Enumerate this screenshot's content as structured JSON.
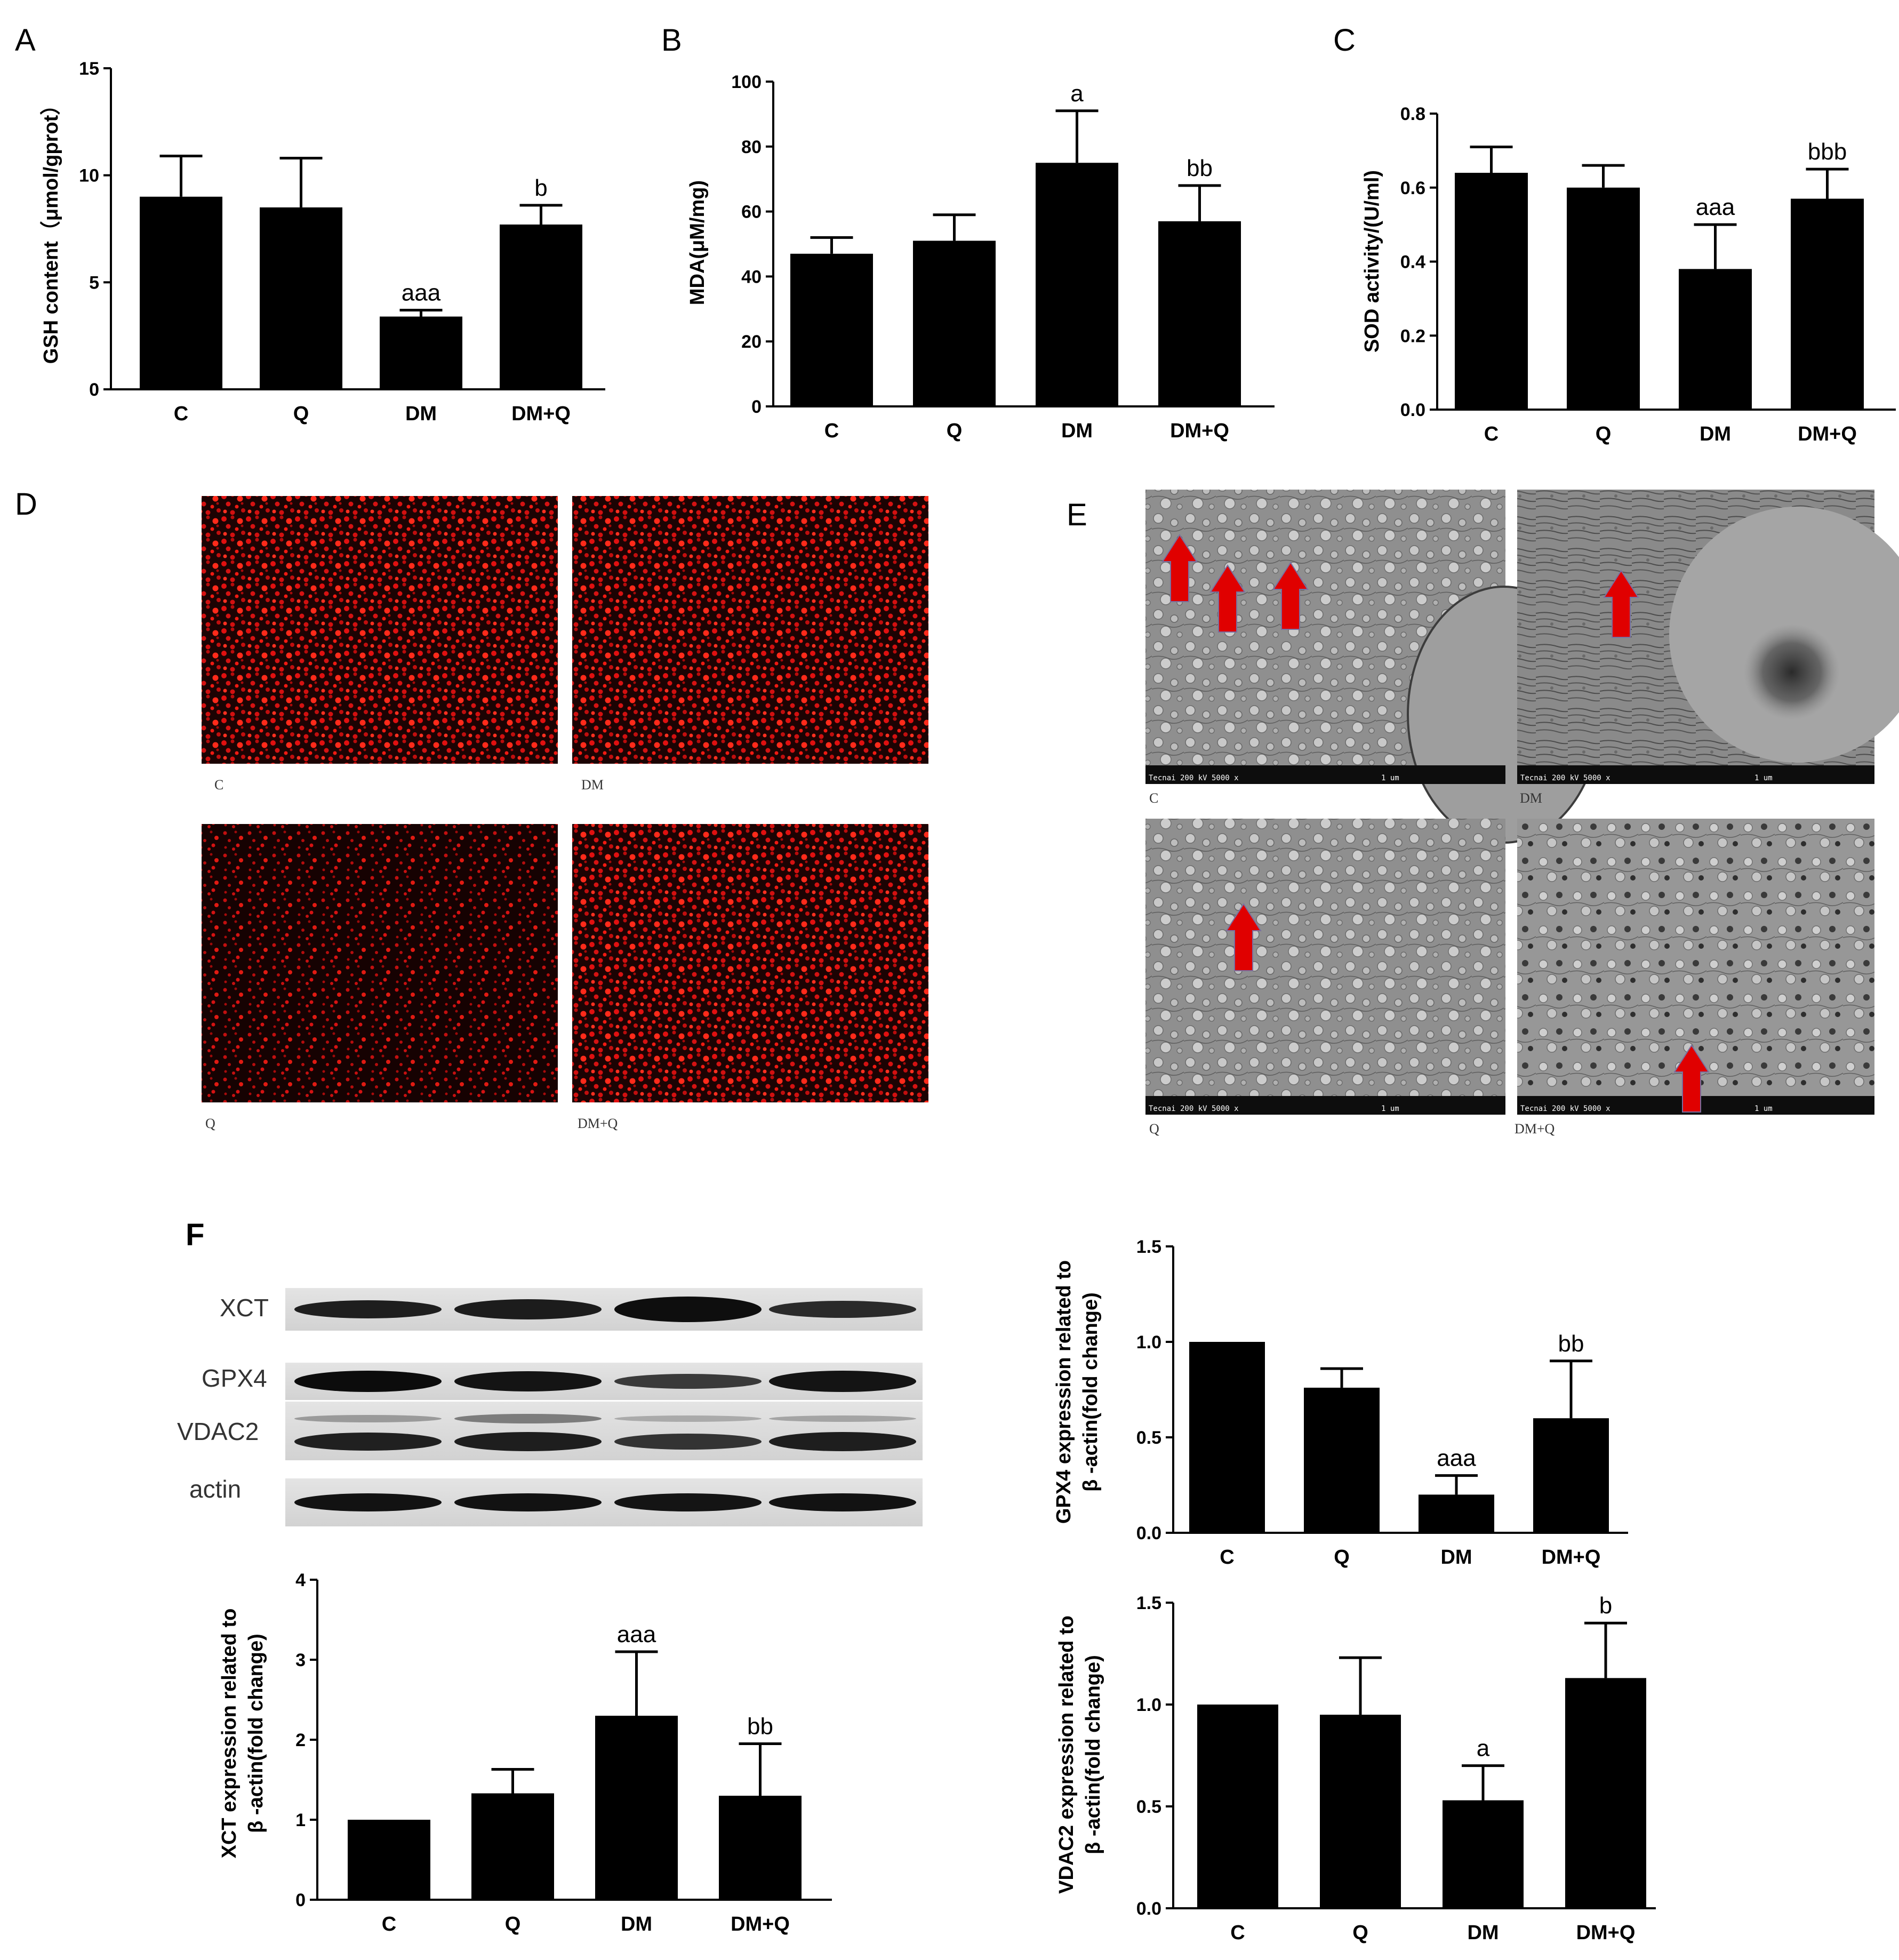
{
  "chart_data": [
    {
      "panel": "A",
      "type": "bar",
      "categories": [
        "C",
        "Q",
        "DM",
        "DM+Q"
      ],
      "values": [
        9.0,
        8.5,
        3.4,
        7.7
      ],
      "errors": [
        1.9,
        2.3,
        0.3,
        0.9
      ],
      "annotations": [
        "",
        "",
        "aaa",
        "b"
      ],
      "ylabel": "GSH content（μmol/gprot）",
      "ylim": [
        0,
        15
      ],
      "yticks": [
        0,
        5,
        10,
        15
      ]
    },
    {
      "panel": "B",
      "type": "bar",
      "categories": [
        "C",
        "Q",
        "DM",
        "DM+Q"
      ],
      "values": [
        47,
        51,
        75,
        57
      ],
      "errors": [
        5,
        8,
        16,
        11
      ],
      "annotations": [
        "",
        "",
        "a",
        "bb"
      ],
      "ylabel": "MDA(μM/mg)",
      "ylim": [
        0,
        100
      ],
      "yticks": [
        0,
        20,
        40,
        60,
        80,
        100
      ]
    },
    {
      "panel": "C",
      "type": "bar",
      "categories": [
        "C",
        "Q",
        "DM",
        "DM+Q"
      ],
      "values": [
        0.64,
        0.6,
        0.38,
        0.57
      ],
      "errors": [
        0.07,
        0.06,
        0.12,
        0.08
      ],
      "annotations": [
        "",
        "",
        "aaa",
        "bbb"
      ],
      "ylabel": "SOD activity/(U/ml)",
      "ylim": [
        0,
        0.8
      ],
      "yticks": [
        "0.0",
        "0.2",
        "0.4",
        "0.6",
        "0.8"
      ]
    },
    {
      "panel": "F-XCT",
      "type": "bar",
      "categories": [
        "C",
        "Q",
        "DM",
        "DM+Q"
      ],
      "values": [
        1.0,
        1.33,
        2.3,
        1.3
      ],
      "errors": [
        0,
        0.3,
        0.8,
        0.65
      ],
      "annotations": [
        "",
        "",
        "aaa",
        "bb"
      ],
      "ylabel": [
        "XCT expression related to",
        "β -actin(fold change)"
      ],
      "ylim": [
        0,
        4
      ],
      "yticks": [
        "0",
        "1",
        "2",
        "3",
        "4"
      ]
    },
    {
      "panel": "F-GPX4",
      "type": "bar",
      "categories": [
        "C",
        "Q",
        "DM",
        "DM+Q"
      ],
      "values": [
        1.0,
        0.76,
        0.2,
        0.6
      ],
      "errors": [
        0,
        0.1,
        0.1,
        0.3
      ],
      "annotations": [
        "",
        "",
        "aaa",
        "bb"
      ],
      "ylabel": [
        "GPX4 expression related to",
        "β -actin(fold change)"
      ],
      "ylim": [
        0,
        1.5
      ],
      "yticks": [
        "0.0",
        "0.5",
        "1.0",
        "1.5"
      ]
    },
    {
      "panel": "F-VDAC2",
      "type": "bar",
      "categories": [
        "C",
        "Q",
        "DM",
        "DM+Q"
      ],
      "values": [
        1.0,
        0.95,
        0.53,
        1.13
      ],
      "errors": [
        0,
        0.28,
        0.17,
        0.27
      ],
      "annotations": [
        "",
        "",
        "a",
        "b"
      ],
      "ylabel": [
        "VDAC2 expression related to",
        "β -actin(fold change)"
      ],
      "ylim": [
        0,
        1.5
      ],
      "yticks": [
        "0.0",
        "0.5",
        "1.0",
        "1.5"
      ]
    }
  ],
  "panel_letters": {
    "a": "A",
    "b": "B",
    "c": "C",
    "d": "D",
    "e": "E",
    "f": "F"
  },
  "fluorescence_images": {
    "color": "#e01010",
    "labels": [
      "C",
      "DM",
      "Q",
      "DM+Q"
    ]
  },
  "em_images": {
    "labels": [
      "C",
      "DM",
      "Q",
      "DM+Q"
    ],
    "info_text": "Tecnai  200 kV   5000 x",
    "scale_text": "1 um",
    "arrow_color": "#e00000"
  },
  "western_blot": {
    "labels": [
      "XCT",
      "GPX4",
      "VDAC2",
      "actin"
    ]
  }
}
